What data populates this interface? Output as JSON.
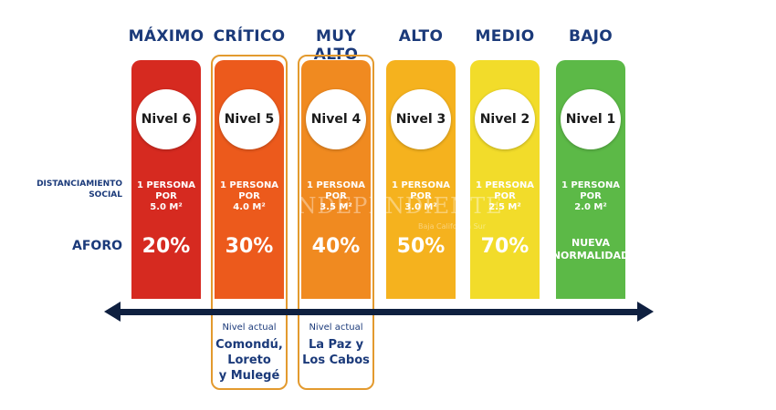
{
  "row_labels": {
    "distanciamiento": "DISTANCIAMIENTO\nSOCIAL",
    "aforo": "AFORO"
  },
  "levels": [
    {
      "title": "MÁXIMO",
      "badge": "Nivel 6",
      "distance": "1 PERSONA POR\n5.0 M²",
      "aforo": "20%",
      "color": "#d62a20"
    },
    {
      "title": "CRÍTICO",
      "badge": "Nivel 5",
      "distance": "1 PERSONA POR\n4.0 M²",
      "aforo": "30%",
      "color": "#ec5a1c"
    },
    {
      "title": "MUY ALTO",
      "badge": "Nivel 4",
      "distance": "1 PERSONA POR\n3.5 M²",
      "aforo": "40%",
      "color": "#f08a20"
    },
    {
      "title": "ALTO",
      "badge": "Nivel 3",
      "distance": "1 PERSONA POR\n3.0 M²",
      "aforo": "50%",
      "color": "#f5b21e"
    },
    {
      "title": "MEDIO",
      "badge": "Nivel 2",
      "distance": "1 PERSONA POR\n2.5 M²",
      "aforo": "70%",
      "color": "#f2dc2a"
    },
    {
      "title": "BAJO",
      "badge": "Nivel 1",
      "distance": "1 PERSONA POR\n2.0 M²",
      "aforo": "NUEVA\nNORMALIDAD",
      "color": "#5cb947"
    }
  ],
  "current": [
    {
      "caption": "Nivel actual",
      "places": "Comondú,\nLoreto\ny Mulegé"
    },
    {
      "caption": "Nivel actual",
      "places": "La Paz y\nLos Cabos"
    }
  ],
  "watermark": {
    "main": "INDEPENDIENTE",
    "sub": "Baja California Sur"
  },
  "colors": {
    "title_text": "#1b3a7a",
    "arrow": "#0f2040",
    "outline": "#e39a2e"
  }
}
